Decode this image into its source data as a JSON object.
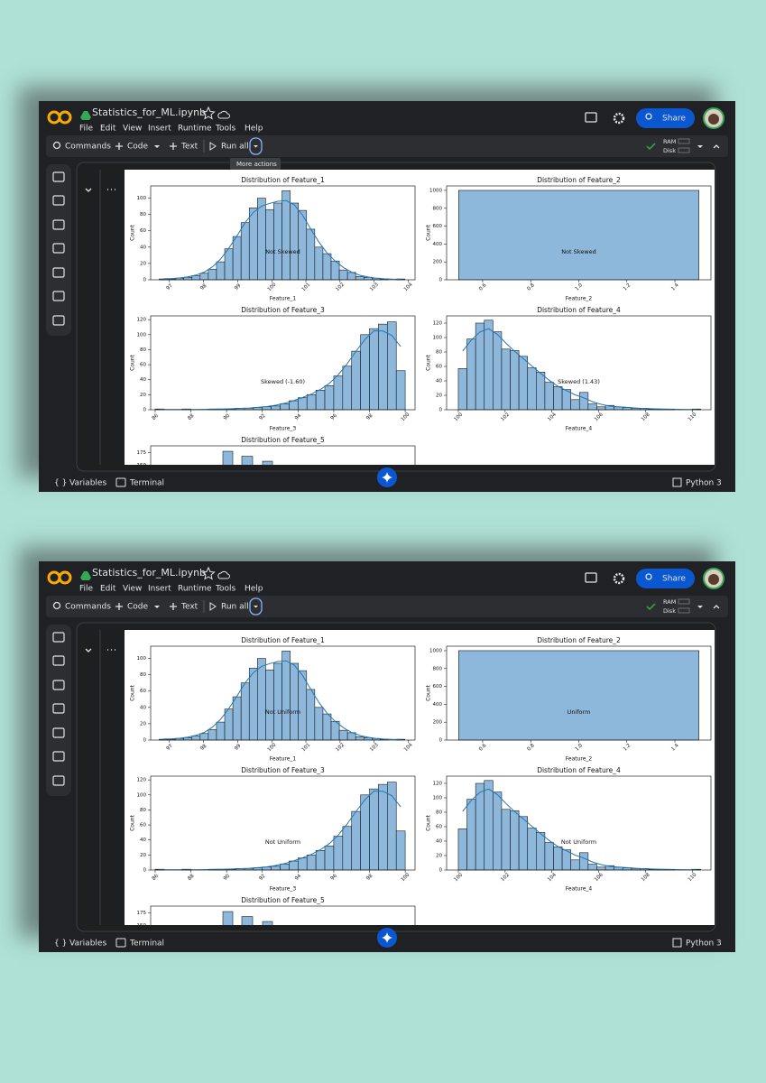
{
  "app": {
    "title": "Statistics_for_ML.ipynb",
    "menu": [
      "File",
      "Edit",
      "View",
      "Insert",
      "Runtime",
      "Tools",
      "Help"
    ],
    "share": "Share",
    "toolbar": {
      "commands": "Commands",
      "code": "Code",
      "text": "Text",
      "run_all": "Run all"
    },
    "resources": {
      "ram": "RAM",
      "disk": "Disk"
    },
    "statusbar": {
      "variables": "Variables",
      "terminal": "Terminal",
      "kernel": "Python 3"
    }
  },
  "windows": [
    {
      "tooltip": "More actions",
      "annotations": [
        "Not Skewed",
        "Not Skewed",
        "Skewed (-1.60)",
        "Skewed (1.43)"
      ]
    },
    {
      "annotations": [
        "Not Uniform",
        "Uniform",
        "Not Uniform",
        "Not Uniform"
      ]
    }
  ],
  "plots": [
    {
      "type": "histogram",
      "title": "Distribution of Feature_1",
      "xlabel": "Feature_1",
      "ylabel": "Count",
      "kde": true,
      "bins": [
        96.7,
        96.94,
        97.18,
        97.42,
        97.66,
        97.9,
        98.14,
        98.38,
        98.62,
        98.86,
        99.1,
        99.34,
        99.58,
        99.82,
        100.06,
        100.3,
        100.54,
        100.78,
        101.02,
        101.26,
        101.5,
        101.74,
        101.98,
        102.22,
        102.46,
        102.7,
        102.94,
        103.18,
        103.42,
        103.66,
        103.9
      ],
      "counts": [
        1,
        1,
        2,
        3,
        5,
        8,
        13,
        22,
        38,
        53,
        70,
        88,
        100,
        86,
        94,
        109,
        94,
        85,
        62,
        40,
        32,
        23,
        12,
        9,
        4,
        3,
        2,
        1,
        0,
        1
      ],
      "xlim": [
        96.45,
        104.2
      ],
      "ylim": [
        0,
        115
      ],
      "xticks": [
        97,
        98,
        99,
        100,
        101,
        102,
        103,
        104
      ],
      "yticks": [
        0,
        20,
        40,
        60,
        80,
        100
      ]
    },
    {
      "type": "histogram",
      "title": "Distribution of Feature_2",
      "xlabel": "Feature_2",
      "ylabel": "Count",
      "kde": false,
      "bins": [
        0.5,
        1.5
      ],
      "counts": [
        1000
      ],
      "xlim": [
        0.45,
        1.55
      ],
      "ylim": [
        0,
        1050
      ],
      "xticks": [
        0.6,
        0.8,
        {
          "value": 1,
          "label": "1.0"
        },
        1.2,
        1.4
      ],
      "yticks": [
        0,
        200,
        400,
        600,
        800,
        1000
      ]
    },
    {
      "type": "histogram",
      "title": "Distribution of Feature_3",
      "xlabel": "Feature_3",
      "ylabel": "Count",
      "kde": true,
      "bins": [
        86,
        86.5,
        87,
        87.5,
        88,
        88.5,
        89,
        89.5,
        90,
        90.5,
        91,
        91.5,
        92,
        92.5,
        93,
        93.5,
        94,
        94.5,
        95,
        95.5,
        96,
        96.5,
        97,
        97.5,
        98,
        98.5,
        99,
        99.5,
        100
      ],
      "counts": [
        1,
        0,
        0,
        1,
        0,
        0,
        1,
        1,
        1,
        2,
        2,
        3,
        4,
        5,
        8,
        12,
        16,
        20,
        26,
        32,
        45,
        58,
        78,
        100,
        108,
        114,
        117,
        52
      ],
      "xlim": [
        85.75,
        100.55
      ],
      "ylim": [
        0,
        125
      ],
      "xticks": [
        86,
        88,
        90,
        92,
        94,
        96,
        98,
        100
      ],
      "yticks": [
        0,
        20,
        40,
        60,
        80,
        100,
        120
      ]
    },
    {
      "type": "histogram",
      "title": "Distribution of Feature_4",
      "xlabel": "Feature_4",
      "ylabel": "Count",
      "kde": true,
      "bins": [
        100,
        100.37,
        100.74,
        101.11,
        101.48,
        101.85,
        102.22,
        102.59,
        102.96,
        103.33,
        103.7,
        104.07,
        104.44,
        104.81,
        105.18,
        105.55,
        105.92,
        106.29,
        106.66,
        107.03,
        107.4,
        107.77,
        108.14,
        108.51,
        108.88,
        109.25,
        109.62,
        109.99,
        110.36
      ],
      "counts": [
        57,
        98,
        120,
        124,
        108,
        84,
        82,
        74,
        58,
        52,
        38,
        32,
        28,
        14,
        24,
        8,
        4,
        6,
        4,
        3,
        2,
        2,
        1,
        1,
        1,
        0,
        0,
        1
      ],
      "xlim": [
        99.5,
        110.8
      ],
      "ylim": [
        0,
        130
      ],
      "xticks": [
        100,
        102,
        104,
        106,
        108,
        110
      ],
      "yticks": [
        0,
        20,
        40,
        60,
        80,
        100,
        120
      ]
    },
    {
      "type": "histogram",
      "title": "Distribution of Feature_5",
      "kde": false,
      "counts": [
        178,
        168,
        158
      ],
      "ylim": [
        0,
        189
      ],
      "yticks": [
        150,
        175
      ]
    }
  ]
}
